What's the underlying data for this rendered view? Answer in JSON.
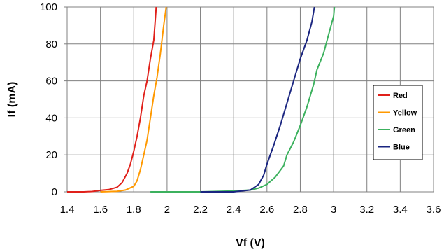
{
  "chart_data": {
    "type": "line",
    "title": "",
    "xlabel": "Vf (V)",
    "ylabel": "If (mA)",
    "xlim": [
      1.4,
      3.6
    ],
    "ylim": [
      0,
      100
    ],
    "x_ticks": [
      "1.4",
      "1.6",
      "1.8",
      "2",
      "2.2",
      "2.4",
      "2.6",
      "2.8",
      "3",
      "3.2",
      "3.4",
      "3.6"
    ],
    "y_ticks": [
      "0",
      "20",
      "40",
      "60",
      "80",
      "100"
    ],
    "grid": true,
    "legend_position": "right",
    "series": [
      {
        "name": "Red",
        "color": "#e0201a",
        "points": [
          [
            1.4,
            0
          ],
          [
            1.5,
            0
          ],
          [
            1.55,
            0.2
          ],
          [
            1.6,
            0.8
          ],
          [
            1.65,
            1.2
          ],
          [
            1.7,
            2.5
          ],
          [
            1.73,
            5
          ],
          [
            1.76,
            10
          ],
          [
            1.78,
            15
          ],
          [
            1.8,
            22
          ],
          [
            1.82,
            30
          ],
          [
            1.84,
            40
          ],
          [
            1.86,
            52
          ],
          [
            1.88,
            60
          ],
          [
            1.9,
            72
          ],
          [
            1.92,
            82
          ],
          [
            1.935,
            100
          ]
        ]
      },
      {
        "name": "Yellow",
        "color": "#ff9900",
        "points": [
          [
            1.6,
            0
          ],
          [
            1.7,
            0.3
          ],
          [
            1.75,
            1
          ],
          [
            1.8,
            3
          ],
          [
            1.82,
            6
          ],
          [
            1.84,
            12
          ],
          [
            1.86,
            20
          ],
          [
            1.88,
            28
          ],
          [
            1.9,
            40
          ],
          [
            1.92,
            52
          ],
          [
            1.94,
            62
          ],
          [
            1.96,
            75
          ],
          [
            1.98,
            90
          ],
          [
            1.995,
            100
          ]
        ]
      },
      {
        "name": "Green",
        "color": "#3cb15e",
        "points": [
          [
            1.9,
            0
          ],
          [
            2.2,
            0
          ],
          [
            2.4,
            0.5
          ],
          [
            2.5,
            1
          ],
          [
            2.55,
            2
          ],
          [
            2.6,
            4
          ],
          [
            2.65,
            8
          ],
          [
            2.7,
            14
          ],
          [
            2.72,
            20
          ],
          [
            2.76,
            27
          ],
          [
            2.8,
            36
          ],
          [
            2.84,
            46
          ],
          [
            2.88,
            58
          ],
          [
            2.9,
            66
          ],
          [
            2.94,
            75
          ],
          [
            2.97,
            85
          ],
          [
            3.0,
            95
          ],
          [
            3.005,
            100
          ]
        ]
      },
      {
        "name": "Blue",
        "color": "#1a2580",
        "points": [
          [
            2.2,
            0
          ],
          [
            2.4,
            0
          ],
          [
            2.5,
            1
          ],
          [
            2.55,
            4
          ],
          [
            2.58,
            9
          ],
          [
            2.6,
            15
          ],
          [
            2.64,
            25
          ],
          [
            2.68,
            36
          ],
          [
            2.72,
            48
          ],
          [
            2.76,
            60
          ],
          [
            2.8,
            72
          ],
          [
            2.84,
            82
          ],
          [
            2.87,
            92
          ],
          [
            2.885,
            100
          ]
        ]
      }
    ]
  }
}
